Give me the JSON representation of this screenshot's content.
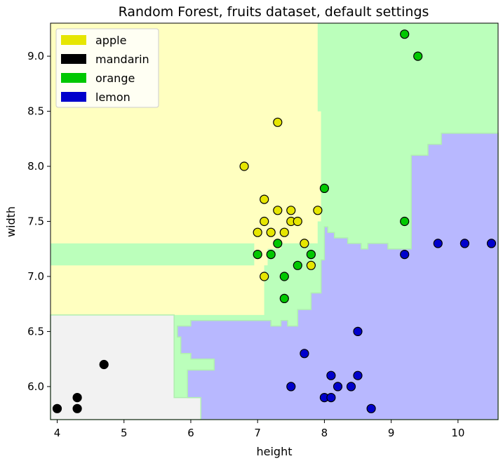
{
  "chart_data": {
    "type": "scatter",
    "title": "Random Forest, fruits dataset, default settings",
    "xlabel": "height",
    "ylabel": "width",
    "xlim": [
      3.9,
      10.6
    ],
    "ylim": [
      5.7,
      9.3
    ],
    "xticks": [
      4,
      5,
      6,
      7,
      8,
      9,
      10
    ],
    "yticks": [
      6.0,
      6.5,
      7.0,
      7.5,
      8.0,
      8.5,
      9.0
    ],
    "xtick_labels": [
      "4",
      "5",
      "6",
      "7",
      "8",
      "9",
      "10"
    ],
    "ytick_labels": [
      "6.0",
      "6.5",
      "7.0",
      "7.5",
      "8.0",
      "8.5",
      "9.0"
    ],
    "legend_position": "top-left",
    "grid": false,
    "series": [
      {
        "name": "apple",
        "color": "#e6e600",
        "region_color": "#ffffc0",
        "points": [
          [
            6.8,
            8.0
          ],
          [
            7.3,
            8.4
          ],
          [
            7.1,
            7.7
          ],
          [
            7.3,
            7.6
          ],
          [
            7.5,
            7.6
          ],
          [
            7.9,
            7.6
          ],
          [
            7.1,
            7.5
          ],
          [
            7.5,
            7.5
          ],
          [
            7.6,
            7.5
          ],
          [
            7.0,
            7.4
          ],
          [
            7.2,
            7.4
          ],
          [
            7.4,
            7.4
          ],
          [
            7.7,
            7.3
          ],
          [
            7.8,
            7.1
          ],
          [
            7.1,
            7.0
          ]
        ]
      },
      {
        "name": "mandarin",
        "color": "#000000",
        "region_color": "#f2f2f2",
        "points": [
          [
            4.0,
            5.8
          ],
          [
            4.3,
            5.8
          ],
          [
            4.3,
            5.9
          ],
          [
            4.7,
            6.2
          ]
        ]
      },
      {
        "name": "orange",
        "color": "#00c800",
        "region_color": "#bbffbb",
        "points": [
          [
            9.2,
            9.2
          ],
          [
            9.4,
            9.0
          ],
          [
            8.0,
            7.8
          ],
          [
            9.2,
            7.5
          ],
          [
            7.3,
            7.3
          ],
          [
            7.0,
            7.2
          ],
          [
            7.2,
            7.2
          ],
          [
            7.8,
            7.2
          ],
          [
            7.6,
            7.1
          ],
          [
            7.4,
            7.0
          ],
          [
            7.4,
            6.8
          ]
        ]
      },
      {
        "name": "lemon",
        "color": "#0000cc",
        "region_color": "#b8b8ff",
        "points": [
          [
            9.2,
            7.2
          ],
          [
            9.7,
            7.3
          ],
          [
            10.1,
            7.3
          ],
          [
            10.5,
            7.3
          ],
          [
            8.5,
            6.5
          ],
          [
            7.7,
            6.3
          ],
          [
            8.1,
            6.1
          ],
          [
            8.5,
            6.1
          ],
          [
            7.5,
            6.0
          ],
          [
            8.2,
            6.0
          ],
          [
            8.4,
            6.0
          ],
          [
            8.0,
            5.9
          ],
          [
            8.1,
            5.9
          ],
          [
            8.7,
            5.8
          ]
        ]
      }
    ],
    "decision_regions": {
      "apple": [
        [
          3.9,
          9.3
        ],
        [
          7.9,
          9.3
        ],
        [
          7.9,
          8.5
        ],
        [
          7.95,
          8.5
        ],
        [
          7.95,
          7.5
        ],
        [
          7.9,
          7.5
        ],
        [
          7.9,
          7.3
        ],
        [
          7.35,
          7.3
        ],
        [
          7.35,
          7.25
        ],
        [
          7.15,
          7.25
        ],
        [
          7.15,
          7.1
        ],
        [
          7.1,
          7.1
        ],
        [
          7.1,
          6.65
        ],
        [
          3.9,
          6.65
        ]
      ],
      "orange_top": [
        [
          7.9,
          9.3
        ],
        [
          10.6,
          9.3
        ],
        [
          10.6,
          8.3
        ],
        [
          9.75,
          8.3
        ],
        [
          9.75,
          8.2
        ],
        [
          9.55,
          8.2
        ],
        [
          9.55,
          8.1
        ],
        [
          9.3,
          8.1
        ],
        [
          9.3,
          7.25
        ],
        [
          8.95,
          7.25
        ],
        [
          8.95,
          7.3
        ],
        [
          8.65,
          7.3
        ],
        [
          8.65,
          7.25
        ],
        [
          8.55,
          7.25
        ],
        [
          8.55,
          7.3
        ],
        [
          8.35,
          7.3
        ],
        [
          8.35,
          7.35
        ],
        [
          8.15,
          7.35
        ],
        [
          8.15,
          7.4
        ],
        [
          8.05,
          7.4
        ],
        [
          8.05,
          7.45
        ],
        [
          8.0,
          7.45
        ],
        [
          8.0,
          7.15
        ],
        [
          7.95,
          7.15
        ],
        [
          7.95,
          6.85
        ],
        [
          7.8,
          6.85
        ],
        [
          7.8,
          6.7
        ],
        [
          7.6,
          6.7
        ],
        [
          7.6,
          6.55
        ],
        [
          7.45,
          6.55
        ],
        [
          7.45,
          6.6
        ],
        [
          7.35,
          6.6
        ],
        [
          7.35,
          6.55
        ],
        [
          7.2,
          6.55
        ],
        [
          7.2,
          6.6
        ],
        [
          7.1,
          6.6
        ],
        [
          7.1,
          7.1
        ],
        [
          7.15,
          7.1
        ],
        [
          7.15,
          7.25
        ],
        [
          7.35,
          7.25
        ],
        [
          7.35,
          7.3
        ],
        [
          7.9,
          7.3
        ],
        [
          7.9,
          7.5
        ],
        [
          7.95,
          7.5
        ],
        [
          7.95,
          8.5
        ],
        [
          7.9,
          8.5
        ]
      ],
      "orange_band": [
        [
          3.9,
          7.3
        ],
        [
          6.95,
          7.3
        ],
        [
          6.95,
          7.1
        ],
        [
          3.9,
          7.1
        ]
      ],
      "mandarin": [
        [
          3.9,
          6.65
        ],
        [
          5.75,
          6.65
        ],
        [
          5.75,
          5.9
        ],
        [
          6.15,
          5.9
        ],
        [
          6.15,
          5.7
        ],
        [
          3.9,
          5.7
        ]
      ],
      "lemon": [
        [
          10.6,
          8.3
        ],
        [
          9.75,
          8.3
        ],
        [
          9.75,
          8.2
        ],
        [
          9.55,
          8.2
        ],
        [
          9.55,
          8.1
        ],
        [
          9.3,
          8.1
        ],
        [
          9.3,
          7.25
        ],
        [
          8.95,
          7.25
        ],
        [
          8.95,
          7.3
        ],
        [
          8.65,
          7.3
        ],
        [
          8.65,
          7.25
        ],
        [
          8.55,
          7.25
        ],
        [
          8.55,
          7.3
        ],
        [
          8.35,
          7.3
        ],
        [
          8.35,
          7.35
        ],
        [
          8.15,
          7.35
        ],
        [
          8.15,
          7.4
        ],
        [
          8.05,
          7.4
        ],
        [
          8.05,
          7.45
        ],
        [
          8.0,
          7.45
        ],
        [
          8.0,
          7.15
        ],
        [
          7.95,
          7.15
        ],
        [
          7.95,
          6.85
        ],
        [
          7.8,
          6.85
        ],
        [
          7.8,
          6.7
        ],
        [
          7.6,
          6.7
        ],
        [
          7.6,
          6.55
        ],
        [
          7.45,
          6.55
        ],
        [
          7.45,
          6.6
        ],
        [
          7.35,
          6.6
        ],
        [
          7.35,
          6.55
        ],
        [
          7.2,
          6.55
        ],
        [
          7.2,
          6.6
        ],
        [
          6.0,
          6.6
        ],
        [
          6.0,
          6.55
        ],
        [
          5.8,
          6.55
        ],
        [
          5.8,
          6.45
        ],
        [
          5.85,
          6.45
        ],
        [
          5.85,
          6.3
        ],
        [
          6.0,
          6.3
        ],
        [
          6.0,
          6.25
        ],
        [
          6.35,
          6.25
        ],
        [
          6.35,
          6.15
        ],
        [
          5.95,
          6.15
        ],
        [
          5.95,
          5.9
        ],
        [
          6.15,
          5.9
        ],
        [
          6.15,
          5.7
        ],
        [
          10.6,
          5.7
        ]
      ]
    }
  }
}
